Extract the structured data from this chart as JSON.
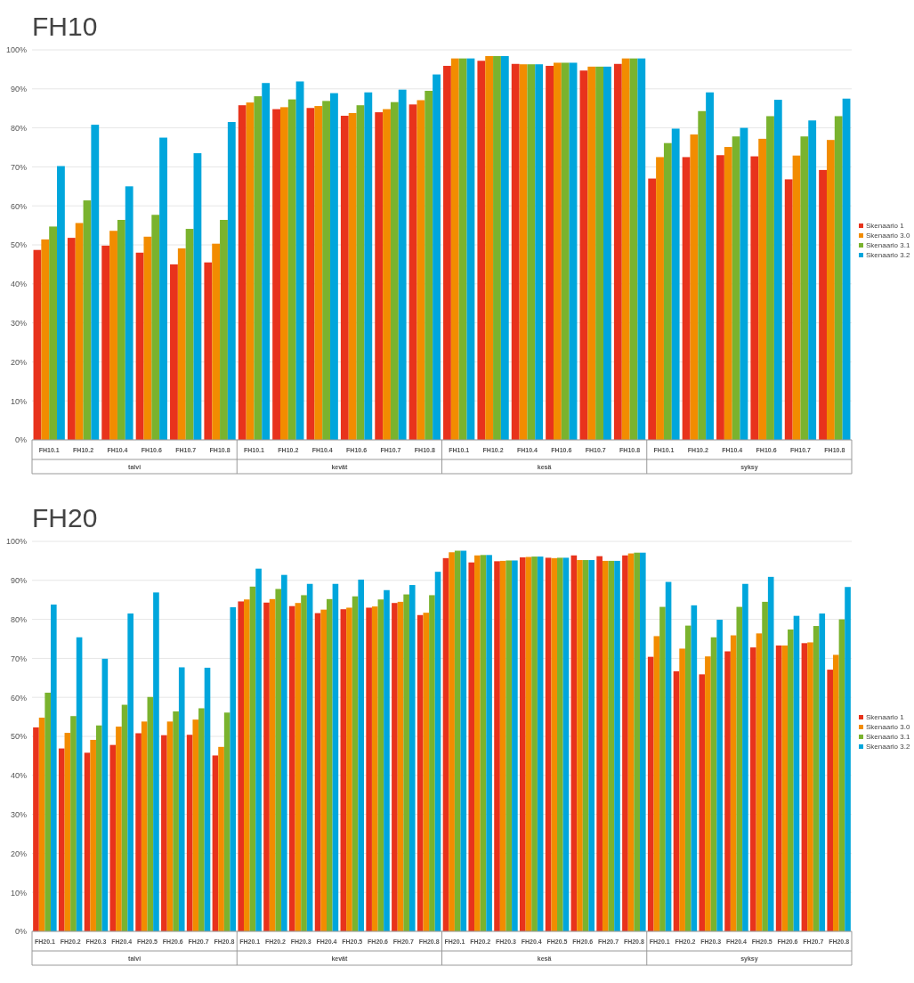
{
  "chart_data": [
    {
      "type": "bar",
      "title": "FH10",
      "categories": [
        "FH10.1",
        "FH10.2",
        "FH10.4",
        "FH10.6",
        "FH10.7",
        "FH10.8",
        "FH10.1",
        "FH10.2",
        "FH10.4",
        "FH10.6",
        "FH10.7",
        "FH10.8",
        "FH10.1",
        "FH10.2",
        "FH10.4",
        "FH10.6",
        "FH10.7",
        "FH10.8",
        "FH10.1",
        "FH10.2",
        "FH10.4",
        "FH10.6",
        "FH10.7",
        "FH10.8"
      ],
      "annotations": [
        "talvi",
        "kevät",
        "kesä",
        "syksy"
      ],
      "series": [
        {
          "name": "Skenaario 1",
          "color": "#e8331c",
          "values": [
            48.7,
            51.8,
            49.8,
            48.0,
            45.0,
            45.5,
            85.8,
            84.8,
            85.1,
            83.1,
            84.0,
            86.0,
            95.9,
            97.2,
            96.4,
            95.9,
            94.7,
            96.4,
            67.0,
            72.5,
            73.0,
            72.7,
            66.8,
            69.2
          ]
        },
        {
          "name": "Skenaario 3.0",
          "color": "#f28c00",
          "values": [
            51.4,
            55.6,
            53.6,
            52.1,
            49.1,
            50.3,
            86.5,
            85.3,
            85.6,
            83.8,
            84.8,
            87.1,
            97.8,
            98.4,
            96.3,
            96.7,
            95.7,
            97.8,
            72.5,
            78.3,
            75.1,
            77.2,
            72.9,
            76.9
          ]
        },
        {
          "name": "Skenaario 3.1",
          "color": "#7ab32e",
          "values": [
            54.7,
            61.4,
            56.4,
            57.7,
            54.1,
            56.4,
            88.1,
            87.3,
            86.9,
            85.8,
            86.6,
            89.5,
            97.8,
            98.4,
            96.3,
            96.7,
            95.7,
            97.8,
            76.1,
            84.3,
            77.8,
            83.0,
            77.8,
            83.0
          ]
        },
        {
          "name": "Skenaario 3.2",
          "color": "#00a6dc",
          "values": [
            70.2,
            80.8,
            65.0,
            77.5,
            73.5,
            81.5,
            91.5,
            91.9,
            88.9,
            89.1,
            89.8,
            93.7,
            97.8,
            98.4,
            96.3,
            96.7,
            95.7,
            97.8,
            79.8,
            89.1,
            80.0,
            87.2,
            81.9,
            87.5
          ]
        }
      ],
      "ylim": [
        0,
        100
      ],
      "yticks": [
        {
          "value": 0,
          "label": "0%"
        },
        {
          "value": 10,
          "label": "10%"
        },
        {
          "value": 20,
          "label": "20%"
        },
        {
          "value": 30,
          "label": "30%"
        },
        {
          "value": 40,
          "label": "40%"
        },
        {
          "value": 50,
          "label": "50%"
        },
        {
          "value": 60,
          "label": "60%"
        },
        {
          "value": 70,
          "label": "70%"
        },
        {
          "value": 80,
          "label": "80%"
        },
        {
          "value": 90,
          "label": "90%"
        },
        {
          "value": 100,
          "label": "100%"
        }
      ],
      "grid": "y",
      "legend": "right"
    },
    {
      "type": "bar",
      "title": "FH20",
      "categories": [
        "FH20.1",
        "FH20.2",
        "FH20.3",
        "FH20.4",
        "FH20.5",
        "FH20.6",
        "FH20.7",
        "FH20.8",
        "FH20.1",
        "FH20.2",
        "FH20.3",
        "FH20.4",
        "FH20.5",
        "FH20.6",
        "FH20.7",
        "FH20.8",
        "FH20.1",
        "FH20.2",
        "FH20.3",
        "FH20.4",
        "FH20.5",
        "FH20.6",
        "FH20.7",
        "FH20.8",
        "FH20.1",
        "FH20.2",
        "FH20.3",
        "FH20.4",
        "FH20.5",
        "FH20.6",
        "FH20.7",
        "FH20.8"
      ],
      "annotations": [
        "talvi",
        "kevät",
        "kesä",
        "syksy"
      ],
      "series": [
        {
          "name": "Skenaario 1",
          "color": "#e8331c",
          "values": [
            52.3,
            46.9,
            45.8,
            47.8,
            50.8,
            50.3,
            50.4,
            45.1,
            84.6,
            84.3,
            83.4,
            81.6,
            82.6,
            83.0,
            84.2,
            81.1,
            95.7,
            94.6,
            94.9,
            95.9,
            95.8,
            96.4,
            96.2,
            96.4,
            70.4,
            66.7,
            65.9,
            71.8,
            72.8,
            73.3,
            73.9,
            67.1
          ]
        },
        {
          "name": "Skenaario 3.0",
          "color": "#f28c00",
          "values": [
            54.8,
            50.9,
            49.1,
            52.5,
            53.8,
            53.8,
            54.3,
            47.3,
            85.1,
            85.2,
            84.2,
            82.5,
            83.0,
            83.3,
            84.5,
            81.7,
            97.2,
            96.4,
            95.0,
            96.0,
            95.7,
            95.2,
            95.0,
            96.9,
            75.7,
            72.5,
            70.5,
            75.9,
            76.4,
            73.3,
            74.1,
            70.9
          ]
        },
        {
          "name": "Skenaario 3.1",
          "color": "#7ab32e",
          "values": [
            61.2,
            55.2,
            52.8,
            58.1,
            60.1,
            56.4,
            57.2,
            56.1,
            88.4,
            87.8,
            86.2,
            85.2,
            85.9,
            85.1,
            86.4,
            86.2,
            97.6,
            96.5,
            95.1,
            96.1,
            95.8,
            95.2,
            95.0,
            97.1,
            83.2,
            78.4,
            75.4,
            83.2,
            84.5,
            77.4,
            78.3,
            80.0
          ]
        },
        {
          "name": "Skenaario 3.2",
          "color": "#00a6dc",
          "values": [
            83.8,
            75.4,
            69.9,
            81.5,
            86.9,
            67.7,
            67.6,
            83.1,
            93.0,
            91.4,
            89.1,
            89.1,
            90.2,
            87.5,
            88.8,
            92.2,
            97.6,
            96.5,
            95.1,
            96.1,
            95.8,
            95.2,
            95.0,
            97.1,
            89.6,
            83.6,
            79.9,
            89.1,
            90.9,
            80.9,
            81.5,
            88.3
          ]
        }
      ],
      "ylim": [
        0,
        100
      ],
      "yticks": [
        {
          "value": 0,
          "label": "0%"
        },
        {
          "value": 10,
          "label": "10%"
        },
        {
          "value": 20,
          "label": "20%"
        },
        {
          "value": 30,
          "label": "30%"
        },
        {
          "value": 40,
          "label": "40%"
        },
        {
          "value": 50,
          "label": "50%"
        },
        {
          "value": 60,
          "label": "60%"
        },
        {
          "value": 70,
          "label": "70%"
        },
        {
          "value": 80,
          "label": "80%"
        },
        {
          "value": 90,
          "label": "90%"
        },
        {
          "value": 100,
          "label": "100%"
        }
      ],
      "grid": "y",
      "legend": "right"
    }
  ]
}
